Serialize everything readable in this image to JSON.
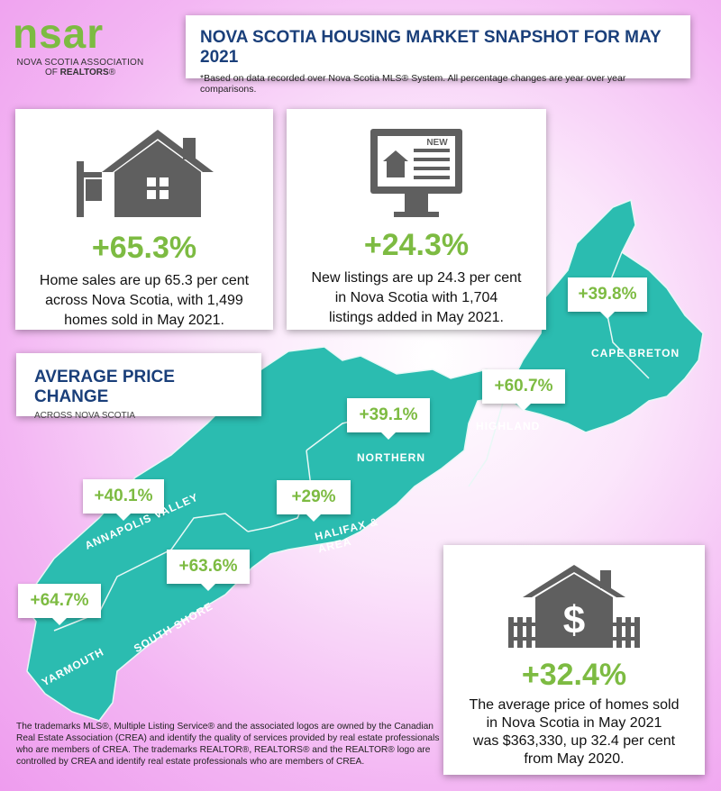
{
  "logo": {
    "word": "nsar",
    "line1": "NOVA SCOTIA ASSOCIATION",
    "line2_prefix": "OF",
    "line2_bold": "REALTORS",
    "line2_suffix": "®"
  },
  "header": {
    "title": "NOVA SCOTIA HOUSING MARKET SNAPSHOT FOR MAY 2021",
    "subtitle": "*Based on data recorded over Nova Scotia MLS® System. All percentage changes are year over year comparisons."
  },
  "sales": {
    "icon": "house-for-sale-icon",
    "value": "+65.3%",
    "text": [
      "Home sales are up 65.3 per cent",
      "across Nova Scotia, with 1,499",
      "homes sold in May 2021."
    ]
  },
  "listings": {
    "icon": "monitor-new-listing-icon",
    "badge": "NEW",
    "value": "+24.3%",
    "text": [
      "New listings are up 24.3 per cent",
      "in Nova Scotia with 1,704",
      "listings added in May 2021."
    ]
  },
  "price_change": {
    "title": "AVERAGE PRICE CHANGE",
    "subtitle": "ACROSS NOVA SCOTIA"
  },
  "regions": [
    {
      "name": "CAPE BRETON",
      "change": "+39.8%"
    },
    {
      "name": "HIGHLAND",
      "change": "+60.7%"
    },
    {
      "name": "NORTHERN",
      "change": "+39.1%"
    },
    {
      "name": "HALIFAX & AREA",
      "change": "+29%"
    },
    {
      "name": "ANNAPOLIS VALLEY",
      "change": "+40.1%"
    },
    {
      "name": "SOUTH SHORE",
      "change": "+63.6%"
    },
    {
      "name": "YARMOUTH",
      "change": "+64.7%"
    }
  ],
  "average_price": {
    "icon": "house-dollar-icon",
    "value": "+32.4%",
    "text": [
      "The average price of homes sold",
      "in Nova Scotia in May 2021",
      "was $363,330, up 32.4 per cent",
      "from May 2020."
    ]
  },
  "footnote": "The trademarks MLS®, Multiple Listing Service® and the associated logos are owned by the Canadian Real Estate Association (CREA) and identify the quality of services provided by real estate professionals who are members of CREA. The trademarks REALTOR®, REALTORS® and the REALTOR® logo are controlled by CREA and identify real estate professionals who are members of CREA.",
  "colors": {
    "accent_green": "#7dbb42",
    "title_blue": "#1a3f7a",
    "map_teal": "#2bbcb0",
    "icon_gray": "#5f5f5f"
  }
}
